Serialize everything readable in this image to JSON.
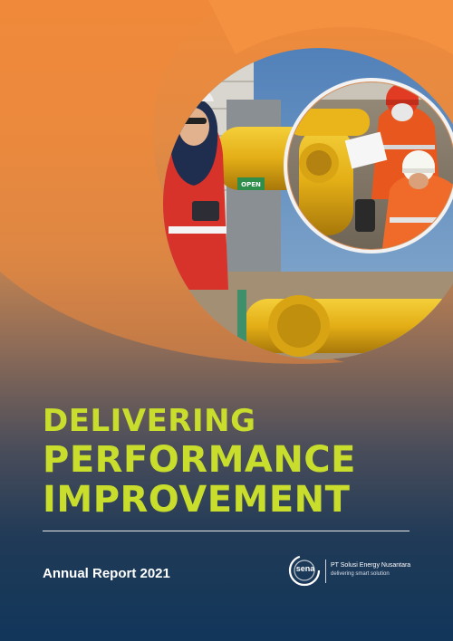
{
  "cover": {
    "title_line1": "DELIVERING",
    "title_line2": "PERFORMANCE",
    "title_line3": "IMPROVEMENT",
    "subtitle": "Annual Report 2021"
  },
  "logo": {
    "wordmark": "sena",
    "company_name": "PT Solusi Energy Nusantara",
    "tagline": "delivering smart solution"
  },
  "photo": {
    "valve_label": "OPEN"
  },
  "colors": {
    "title": "#c9de2c",
    "accent_orange": "#f08a3a",
    "navy": "#11365a",
    "pipe_yellow": "#e8b51a",
    "safety_orange": "#e8581e"
  }
}
